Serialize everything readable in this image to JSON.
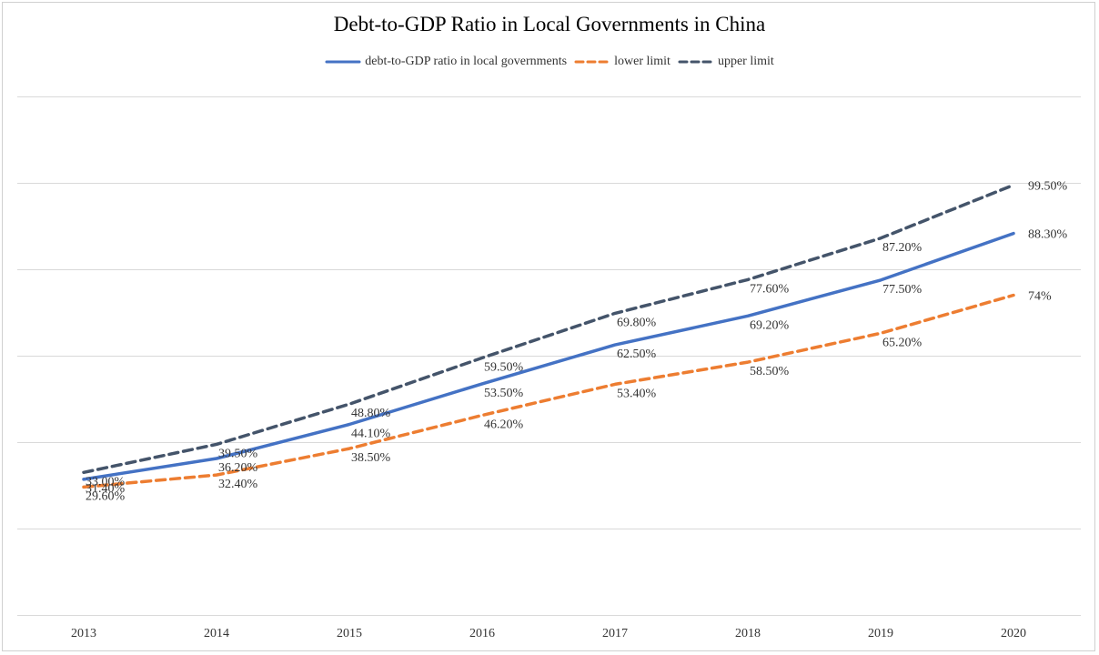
{
  "chart_data": {
    "type": "line",
    "title": "Debt-to-GDP Ratio in Local Governments in China",
    "xlabel": "",
    "ylabel": "",
    "categories": [
      "2013",
      "2014",
      "2015",
      "2016",
      "2017",
      "2018",
      "2019",
      "2020"
    ],
    "ylim": [
      0,
      120
    ],
    "grid": true,
    "legend_position": "top",
    "series": [
      {
        "name": "debt-to-GDP ratio in local governments",
        "values": [
          31.4,
          36.2,
          44.1,
          53.5,
          62.5,
          69.2,
          77.5,
          88.3
        ],
        "labels": [
          "31.40%",
          "36.20%",
          "44.10%",
          "53.50%",
          "62.50%",
          "69.20%",
          "77.50%",
          "88.30%"
        ],
        "color": "#4472C4",
        "dash": "solid"
      },
      {
        "name": "lower limit",
        "values": [
          29.6,
          32.4,
          38.5,
          46.2,
          53.4,
          58.5,
          65.2,
          74
        ],
        "labels": [
          "29.60%",
          "32.40%",
          "38.50%",
          "46.20%",
          "53.40%",
          "58.50%",
          "65.20%",
          "74%"
        ],
        "color": "#ED7D31",
        "dash": "dashed"
      },
      {
        "name": "upper limit",
        "values": [
          33.0,
          39.5,
          48.8,
          59.5,
          69.8,
          77.6,
          87.2,
          99.5
        ],
        "labels": [
          "33.00%",
          "39.50%",
          "48.80%",
          "59.50%",
          "69.80%",
          "77.60%",
          "87.20%",
          "99.50%"
        ],
        "color": "#44546A",
        "dash": "dashed"
      }
    ]
  }
}
